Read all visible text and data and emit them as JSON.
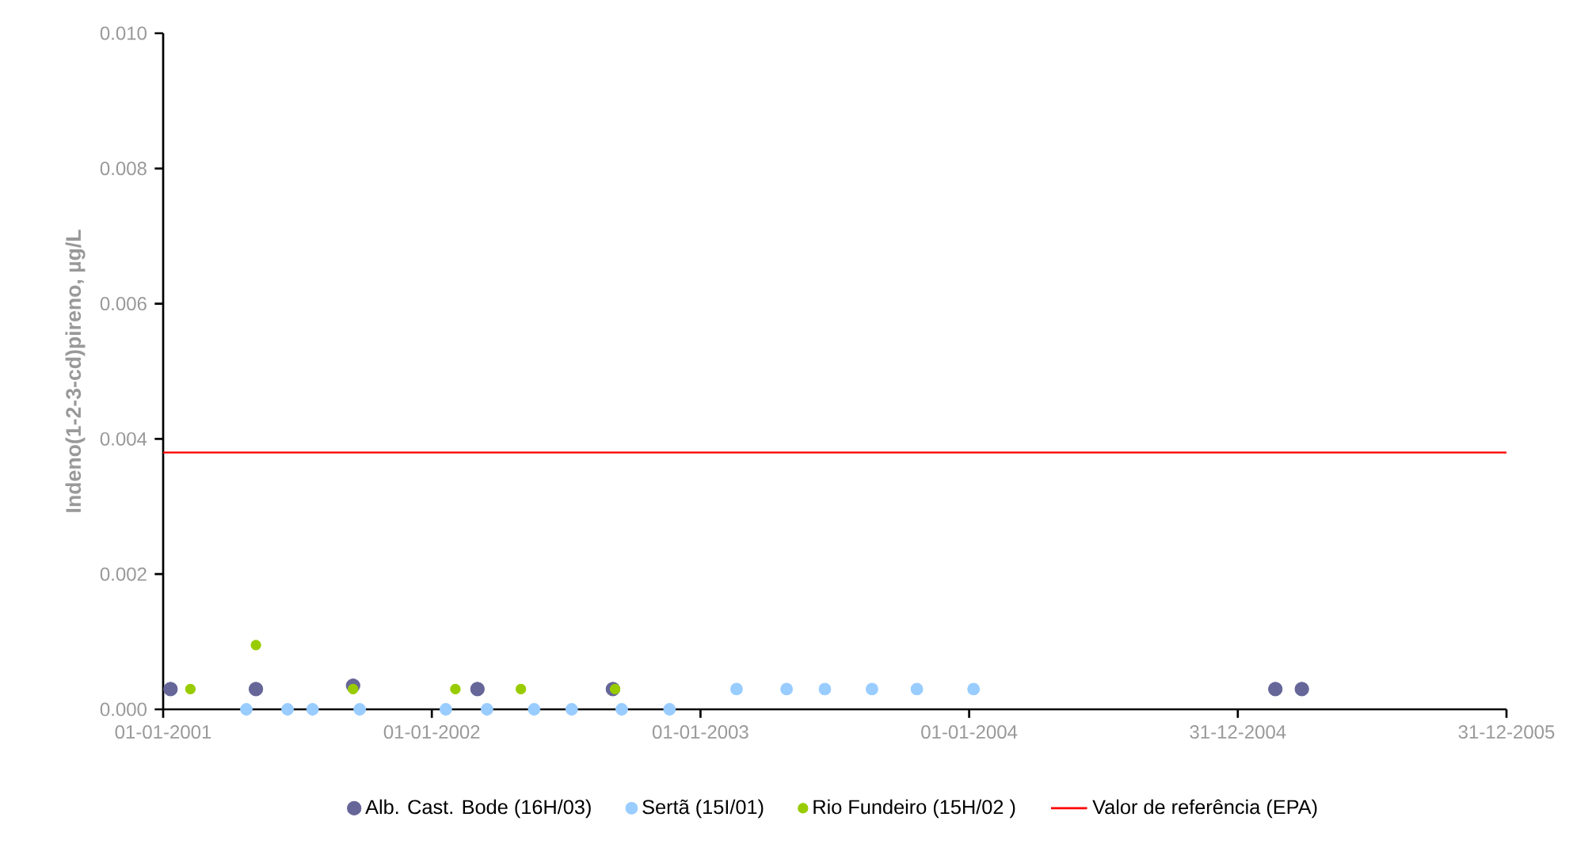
{
  "chart_data": {
    "type": "scatter",
    "ylabel": "Indeno(1-2-3-cd)pireno,  µg/L",
    "xlim": [
      "2001-01-01",
      "2005-12-31"
    ],
    "xticks": [
      {
        "value": "2001-01-01",
        "label": "01-01-2001"
      },
      {
        "value": "2002-01-01",
        "label": "01-01-2002"
      },
      {
        "value": "2003-01-01",
        "label": "01-01-2003"
      },
      {
        "value": "2004-01-01",
        "label": "01-01-2004"
      },
      {
        "value": "2004-12-31",
        "label": "31-12-2004"
      },
      {
        "value": "2005-12-31",
        "label": "31-12-2005"
      }
    ],
    "ylim": [
      0,
      0.01
    ],
    "yticks": [
      {
        "value": 0,
        "label": "0.000"
      },
      {
        "value": 0.002,
        "label": "0.002"
      },
      {
        "value": 0.004,
        "label": "0.004"
      },
      {
        "value": 0.006,
        "label": "0.006"
      },
      {
        "value": 0.008,
        "label": "0.008"
      },
      {
        "value": 0.01,
        "label": "0.010"
      }
    ],
    "series": [
      {
        "name": "Alb. Cast. Bode (16H/03)",
        "color": "#666699",
        "x": [
          "2001-01-11",
          "2001-05-07",
          "2001-09-16",
          "2002-03-04",
          "2002-09-04",
          "2005-02-20",
          "2005-03-28"
        ],
        "values": [
          0.0003,
          0.0003,
          0.00035,
          0.0003,
          0.0003,
          0.0003,
          0.0003
        ]
      },
      {
        "name": "Sertã  (15I/01)",
        "color": "#99ccff",
        "x": [
          "2001-04-24",
          "2001-06-19",
          "2001-07-23",
          "2001-09-25",
          "2002-01-20",
          "2002-03-17",
          "2002-05-20",
          "2002-07-10",
          "2002-09-16",
          "2002-11-20",
          "2003-02-19",
          "2003-04-28",
          "2003-06-19",
          "2003-08-22",
          "2003-10-22",
          "2004-01-07"
        ],
        "values": [
          0.0,
          0.0,
          0.0,
          0.0,
          0.0,
          0.0,
          0.0,
          0.0,
          0.0,
          0.0,
          0.0003,
          0.0003,
          0.0003,
          0.0003,
          0.0003,
          0.0003
        ]
      },
      {
        "name": "Rio Fundeiro (15H/02 )",
        "color": "#99cc00",
        "x": [
          "2001-02-07",
          "2001-05-07",
          "2001-09-16",
          "2002-02-02",
          "2002-05-02",
          "2002-09-07"
        ],
        "values": [
          0.0003,
          0.00095,
          0.0003,
          0.0003,
          0.0003,
          0.0003
        ]
      }
    ],
    "ref_lines": [
      {
        "axis": "y",
        "value": 0.0038,
        "label": "Valor de referência (EPA)",
        "color": "#ff0000"
      }
    ],
    "marker": "circle",
    "legend": "bottom"
  }
}
